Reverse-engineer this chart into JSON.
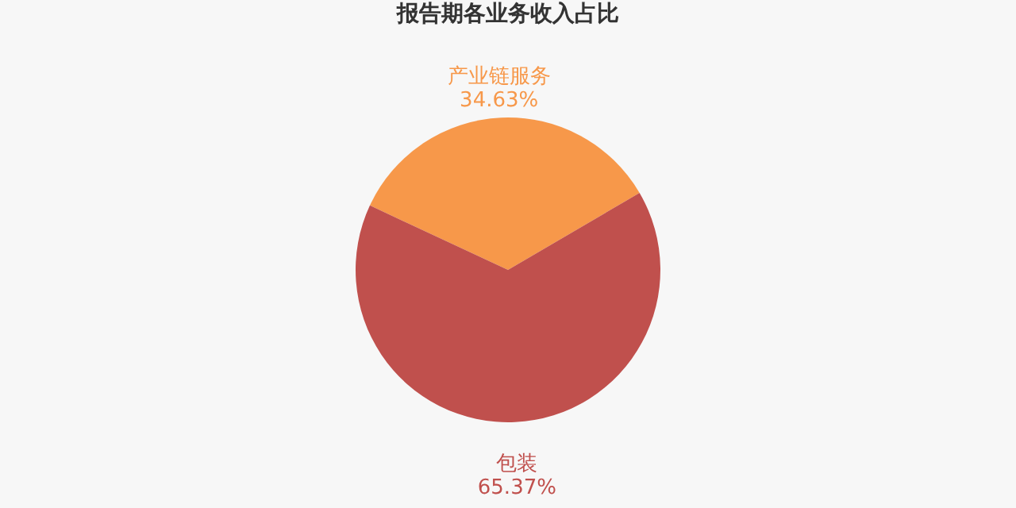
{
  "chart_data": {
    "type": "pie",
    "title": "报告期各业务收入占比",
    "categories": [
      "产业链服务",
      "包装"
    ],
    "values": [
      34.63,
      65.37
    ],
    "colors": [
      "#f7984a",
      "#c0504d"
    ],
    "value_labels": [
      "34.63%",
      "65.37%"
    ]
  }
}
